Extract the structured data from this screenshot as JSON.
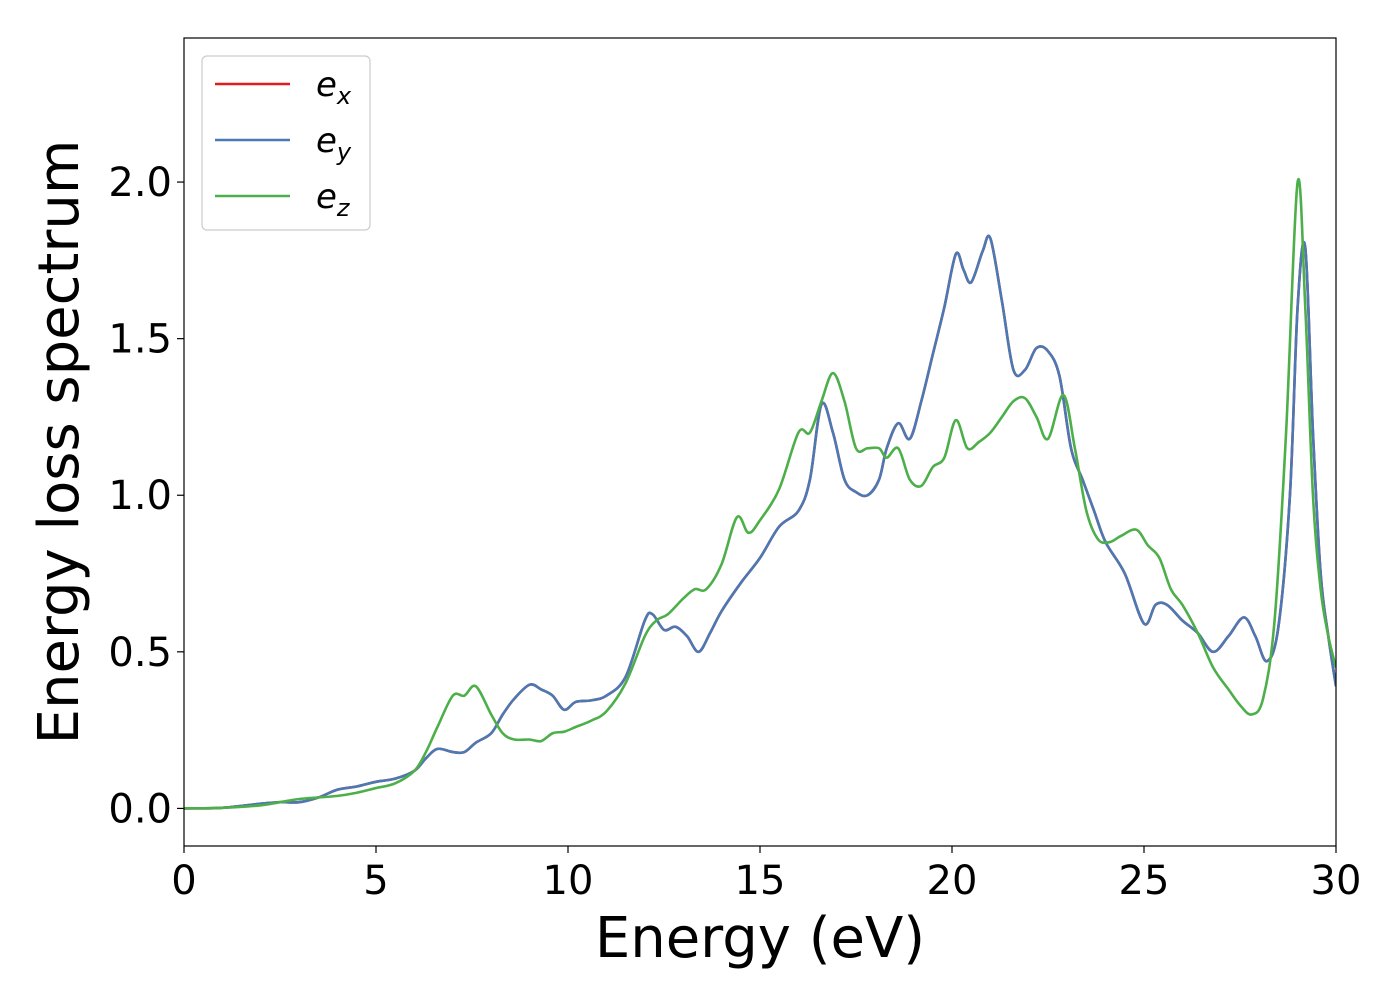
{
  "chart_data": {
    "type": "line",
    "title": "",
    "xlabel": "Energy (eV)",
    "ylabel": "Energy loss spectrum",
    "xlim": [
      0,
      30
    ],
    "ylim": [
      -0.12,
      2.46
    ],
    "xticks": [
      0,
      5,
      10,
      15,
      20,
      25,
      30
    ],
    "xtick_labels": [
      "0",
      "5",
      "10",
      "15",
      "20",
      "25",
      "30"
    ],
    "yticks": [
      0.0,
      0.5,
      1.0,
      1.5,
      2.0
    ],
    "ytick_labels": [
      "0.0",
      "0.5",
      "1.0",
      "1.5",
      "2.0"
    ],
    "grid": false,
    "legend_position": "top-left",
    "series": [
      {
        "name": "e_x",
        "legend_base": "e",
        "legend_sub": "x",
        "color": "#e41a1c",
        "x": [
          0,
          1,
          2,
          2.5,
          3,
          3.5,
          4,
          4.5,
          5,
          5.5,
          6,
          6.3,
          6.6,
          7,
          7.3,
          7.6,
          8,
          8.3,
          8.6,
          9,
          9.3,
          9.6,
          9.9,
          10.2,
          10.6,
          11,
          11.5,
          12,
          12.2,
          12.5,
          12.8,
          13.1,
          13.4,
          13.7,
          14,
          14.5,
          15,
          15.5,
          16,
          16.3,
          16.6,
          16.9,
          17.2,
          17.5,
          17.8,
          18.1,
          18.3,
          18.6,
          18.9,
          19.2,
          19.5,
          19.8,
          20.1,
          20.3,
          20.5,
          20.8,
          21.0,
          21.3,
          21.6,
          21.9,
          22.2,
          22.5,
          22.8,
          23.1,
          23.4,
          23.7,
          24,
          24.5,
          25,
          25.3,
          25.6,
          26,
          26.4,
          26.8,
          27.2,
          27.6,
          27.9,
          28.2,
          28.5,
          28.8,
          29.0,
          29.2,
          29.4,
          29.6,
          29.8,
          30
        ],
        "y": [
          0,
          0.002,
          0.015,
          0.02,
          0.02,
          0.035,
          0.06,
          0.07,
          0.085,
          0.095,
          0.12,
          0.16,
          0.19,
          0.18,
          0.18,
          0.21,
          0.24,
          0.3,
          0.35,
          0.395,
          0.38,
          0.36,
          0.315,
          0.34,
          0.345,
          0.36,
          0.42,
          0.6,
          0.62,
          0.57,
          0.58,
          0.55,
          0.5,
          0.56,
          0.63,
          0.72,
          0.8,
          0.9,
          0.95,
          1.05,
          1.29,
          1.2,
          1.05,
          1.01,
          1.0,
          1.05,
          1.15,
          1.23,
          1.18,
          1.3,
          1.45,
          1.6,
          1.77,
          1.72,
          1.68,
          1.78,
          1.82,
          1.62,
          1.4,
          1.4,
          1.47,
          1.46,
          1.38,
          1.15,
          1.05,
          0.95,
          0.85,
          0.75,
          0.59,
          0.65,
          0.65,
          0.6,
          0.56,
          0.5,
          0.55,
          0.61,
          0.55,
          0.47,
          0.58,
          1.0,
          1.6,
          1.79,
          1.2,
          0.75,
          0.55,
          0.39
        ]
      },
      {
        "name": "e_y",
        "legend_base": "e",
        "legend_sub": "y",
        "color": "#4a79b4",
        "x": [
          0,
          1,
          2,
          2.5,
          3,
          3.5,
          4,
          4.5,
          5,
          5.5,
          6,
          6.3,
          6.6,
          7,
          7.3,
          7.6,
          8,
          8.3,
          8.6,
          9,
          9.3,
          9.6,
          9.9,
          10.2,
          10.6,
          11,
          11.5,
          12,
          12.2,
          12.5,
          12.8,
          13.1,
          13.4,
          13.7,
          14,
          14.5,
          15,
          15.5,
          16,
          16.3,
          16.6,
          16.9,
          17.2,
          17.5,
          17.8,
          18.1,
          18.3,
          18.6,
          18.9,
          19.2,
          19.5,
          19.8,
          20.1,
          20.3,
          20.5,
          20.8,
          21.0,
          21.3,
          21.6,
          21.9,
          22.2,
          22.5,
          22.8,
          23.1,
          23.4,
          23.7,
          24,
          24.5,
          25,
          25.3,
          25.6,
          26,
          26.4,
          26.8,
          27.2,
          27.6,
          27.9,
          28.2,
          28.5,
          28.8,
          29.0,
          29.2,
          29.4,
          29.6,
          29.8,
          30
        ],
        "y": [
          0,
          0.002,
          0.015,
          0.02,
          0.02,
          0.035,
          0.06,
          0.07,
          0.085,
          0.095,
          0.12,
          0.16,
          0.19,
          0.18,
          0.18,
          0.21,
          0.24,
          0.3,
          0.35,
          0.395,
          0.38,
          0.36,
          0.315,
          0.34,
          0.345,
          0.36,
          0.42,
          0.6,
          0.62,
          0.57,
          0.58,
          0.55,
          0.5,
          0.56,
          0.63,
          0.72,
          0.8,
          0.9,
          0.95,
          1.05,
          1.29,
          1.2,
          1.05,
          1.01,
          1.0,
          1.05,
          1.15,
          1.23,
          1.18,
          1.3,
          1.45,
          1.6,
          1.77,
          1.72,
          1.68,
          1.78,
          1.82,
          1.62,
          1.4,
          1.4,
          1.47,
          1.46,
          1.38,
          1.15,
          1.05,
          0.95,
          0.85,
          0.75,
          0.59,
          0.65,
          0.65,
          0.6,
          0.56,
          0.5,
          0.55,
          0.61,
          0.55,
          0.47,
          0.58,
          1.0,
          1.6,
          1.79,
          1.2,
          0.75,
          0.55,
          0.39
        ]
      },
      {
        "name": "e_z",
        "legend_base": "e",
        "legend_sub": "z",
        "color": "#4daf4a",
        "x": [
          0,
          1,
          2,
          2.5,
          3,
          3.5,
          4,
          4.5,
          5,
          5.5,
          6,
          6.3,
          6.6,
          7,
          7.3,
          7.6,
          8,
          8.3,
          8.6,
          9,
          9.3,
          9.6,
          9.9,
          10.2,
          10.6,
          11,
          11.5,
          12,
          12.3,
          12.6,
          13,
          13.3,
          13.6,
          14,
          14.4,
          14.7,
          15,
          15.5,
          16,
          16.3,
          16.6,
          16.9,
          17.2,
          17.5,
          17.8,
          18.1,
          18.3,
          18.6,
          18.9,
          19.2,
          19.5,
          19.8,
          20.1,
          20.4,
          20.7,
          21.0,
          21.3,
          21.6,
          21.9,
          22.2,
          22.5,
          22.9,
          23.2,
          23.5,
          23.8,
          24.1,
          24.4,
          24.8,
          25.1,
          25.4,
          25.7,
          26,
          26.4,
          26.8,
          27.2,
          27.5,
          27.8,
          28.1,
          28.4,
          28.7,
          29.0,
          29.2,
          29.4,
          29.6,
          29.8,
          30
        ],
        "y": [
          0,
          0.002,
          0.01,
          0.02,
          0.03,
          0.035,
          0.04,
          0.05,
          0.065,
          0.08,
          0.12,
          0.18,
          0.26,
          0.36,
          0.36,
          0.39,
          0.3,
          0.24,
          0.22,
          0.22,
          0.215,
          0.24,
          0.245,
          0.26,
          0.28,
          0.31,
          0.4,
          0.55,
          0.6,
          0.62,
          0.67,
          0.7,
          0.7,
          0.78,
          0.93,
          0.88,
          0.92,
          1.02,
          1.2,
          1.2,
          1.3,
          1.39,
          1.3,
          1.15,
          1.15,
          1.15,
          1.12,
          1.15,
          1.05,
          1.03,
          1.09,
          1.12,
          1.24,
          1.15,
          1.17,
          1.2,
          1.25,
          1.3,
          1.31,
          1.25,
          1.18,
          1.32,
          1.15,
          0.95,
          0.86,
          0.85,
          0.87,
          0.89,
          0.84,
          0.8,
          0.7,
          0.65,
          0.56,
          0.45,
          0.38,
          0.33,
          0.3,
          0.35,
          0.6,
          1.2,
          2.0,
          1.6,
          1.0,
          0.7,
          0.55,
          0.45
        ]
      }
    ]
  }
}
